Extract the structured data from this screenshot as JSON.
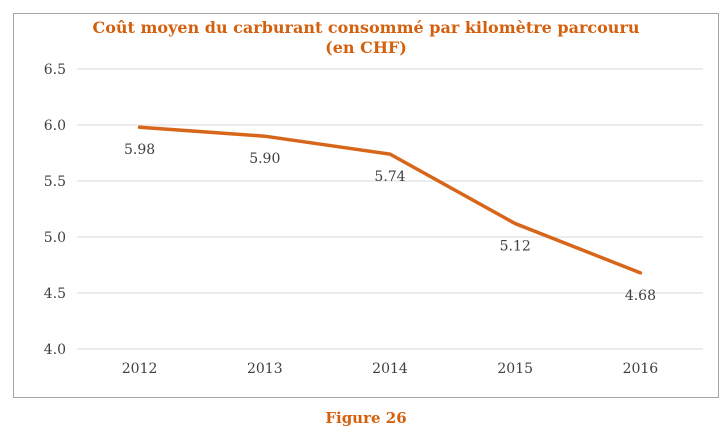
{
  "figure": {
    "caption": "Figure 26"
  },
  "chart": {
    "title": "Coût moyen du carburant consommé par kilomètre parcouru",
    "subtitle": "(en CHF)"
  },
  "colors": {
    "accent_orange": "#d4600e",
    "line_orange": "#d8661a",
    "tick_text": "#404040",
    "gridline": "#d9d9d9",
    "frame_border": "#a6a6a6",
    "background": "#ffffff"
  },
  "chart_data": {
    "type": "line",
    "title": "Coût moyen du carburant consommé par kilomètre parcouru (en CHF)",
    "categories": [
      "2012",
      "2013",
      "2014",
      "2015",
      "2016"
    ],
    "series": [
      {
        "values": [
          5.98,
          5.9,
          5.74,
          5.12,
          4.68
        ]
      }
    ],
    "data_labels": [
      "5.98",
      "5.90",
      "5.74",
      "5.12",
      "4.68"
    ],
    "ylim": [
      4.0,
      6.5
    ],
    "ytick_values": [
      6.5,
      6.0,
      5.5,
      5.0,
      4.5,
      4.0
    ],
    "ytick_labels": [
      "6.5",
      "6.0",
      "5.5",
      "5.0",
      "4.5",
      "4.0"
    ],
    "xlabel": "",
    "ylabel": "",
    "grid": "horizontal",
    "legend": "none"
  }
}
